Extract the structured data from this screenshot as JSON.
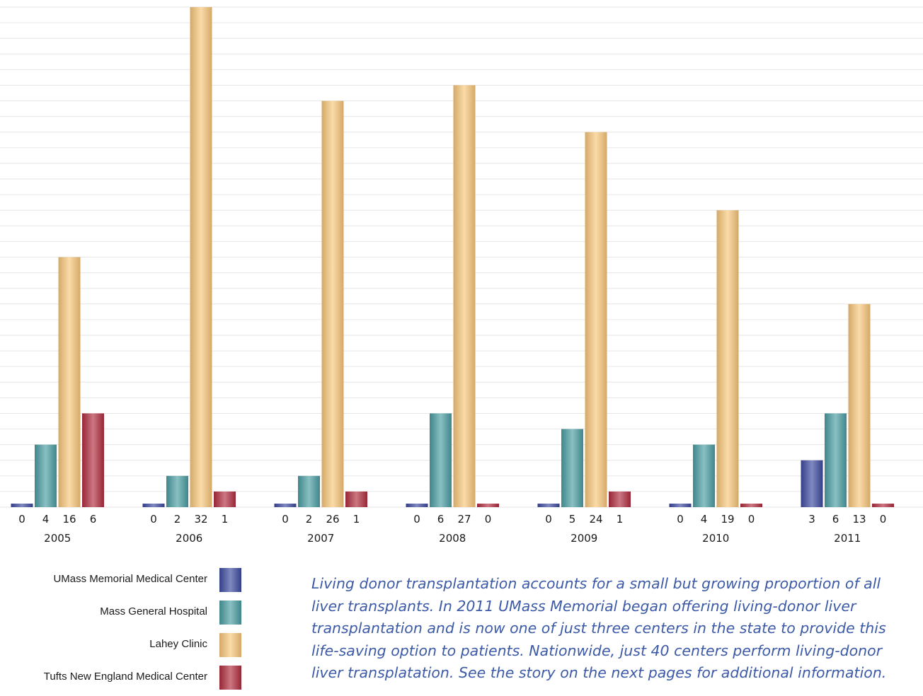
{
  "chart_data": {
    "type": "bar",
    "categories": [
      "2005",
      "2006",
      "2007",
      "2008",
      "2009",
      "2010",
      "2011"
    ],
    "series": [
      {
        "name": "UMass Memorial Medical Center",
        "values": [
          0,
          0,
          0,
          0,
          0,
          0,
          3
        ],
        "color": "#3d4aa0"
      },
      {
        "name": "Mass General Hospital",
        "values": [
          4,
          2,
          2,
          6,
          5,
          4,
          6
        ],
        "color": "#4a9ea3"
      },
      {
        "name": "Lahey Clinic",
        "values": [
          16,
          32,
          26,
          27,
          24,
          19,
          13
        ],
        "color": "#f9c77a"
      },
      {
        "name": "Tufts New England Medical Center",
        "values": [
          6,
          1,
          1,
          0,
          1,
          0,
          0
        ],
        "color": "#b02d3f"
      }
    ],
    "data_labels": true,
    "ylim": [
      0,
      32
    ],
    "grid": true,
    "legend": "bottom-left"
  },
  "caption": "Living donor transplantation accounts for a small but growing proportion of all liver transplants. In 2011 UMass Memorial began offering living-donor liver transplantation and is now one of just three centers in the state to provide this life-saving option to patients. Nationwide, just 40 centers perform living-donor liver transplatation. See the story on the next pages for additional information."
}
